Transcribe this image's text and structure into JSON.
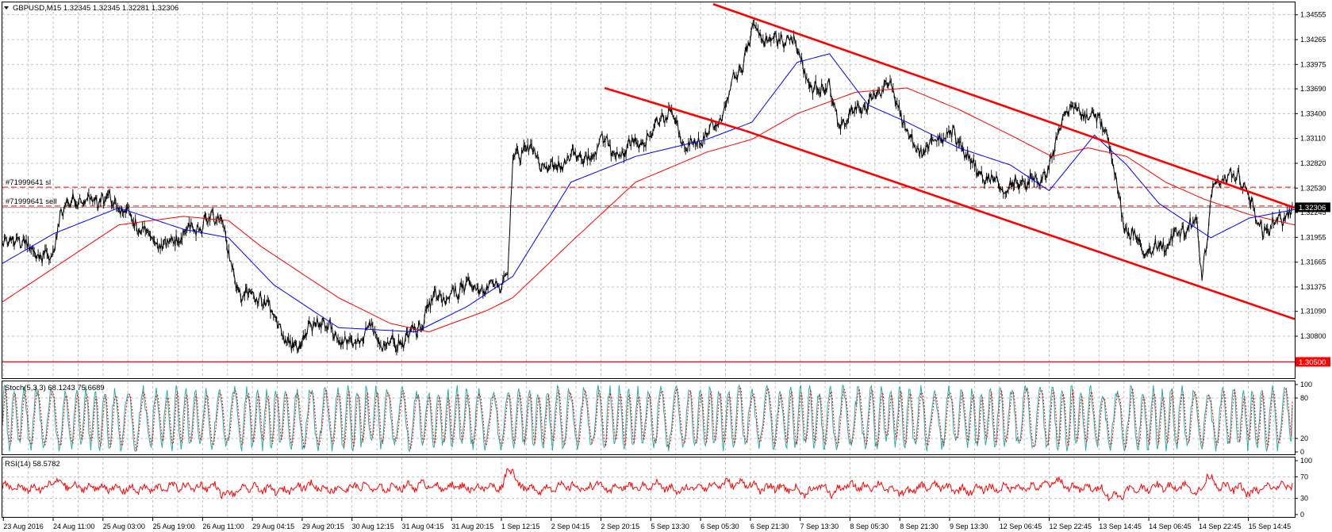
{
  "header": {
    "symbol_line": "GBPUSD,M15  1.32345 1.32345 1.32281 1.32306"
  },
  "colors": {
    "price": "#000000",
    "ma_fast": "#0000ff",
    "ma_slow": "#ff0000",
    "channel": "#ff0000",
    "stoch_main": "#20b2aa",
    "stoch_signal": "#ff0000",
    "rsi": "#ff0000",
    "grid": "#c0c0c0",
    "current_price_bg": "#000000",
    "level_price_bg": "#ff0000"
  },
  "chart_data": [
    {
      "type": "line",
      "name_label": "main",
      "ylim": [
        1.303,
        1.347
      ],
      "yticks": [
        "1.34555",
        "1.34265",
        "1.33975",
        "1.33690",
        "1.33400",
        "1.33110",
        "1.32820",
        "1.32530",
        "1.32245",
        "1.31955",
        "1.31665",
        "1.31375",
        "1.31090",
        "1.30800"
      ],
      "ytick_values": [
        1.34555,
        1.34265,
        1.33975,
        1.3369,
        1.334,
        1.3311,
        1.3282,
        1.3253,
        1.32245,
        1.31955,
        1.31665,
        1.31375,
        1.3109,
        1.308
      ],
      "current_price": "1.32306",
      "current_price_value": 1.32306,
      "level_price": "1.30500",
      "level_price_value": 1.305,
      "xticks": [
        "23 Aug 2016",
        "24 Aug 11:00",
        "25 Aug 03:00",
        "25 Aug 19:00",
        "26 Aug 11:00",
        "29 Aug 04:15",
        "29 Aug 20:15",
        "30 Aug 12:15",
        "31 Aug 04:15",
        "31 Aug 20:15",
        "1 Sep 12:15",
        "2 Sep 04:15",
        "2 Sep 20:15",
        "5 Sep 13:30",
        "6 Sep 05:30",
        "6 Sep 21:30",
        "7 Sep 13:30",
        "8 Sep 05:30",
        "8 Sep 21:30",
        "9 Sep 13:30",
        "12 Sep 06:45",
        "12 Sep 22:45",
        "13 Sep 14:45",
        "14 Sep 06:45",
        "14 Sep 22:45",
        "15 Sep 14:45"
      ],
      "orders": [
        {
          "label": "#71999641 sl",
          "value": 1.3254
        },
        {
          "label": "#71999641 sell",
          "value": 1.3232
        }
      ],
      "x_range": [
        0,
        1000
      ],
      "price_anchors": [
        [
          0,
          1.3185
        ],
        [
          10,
          1.3195
        ],
        [
          25,
          1.3178
        ],
        [
          38,
          1.3168
        ],
        [
          45,
          1.3225
        ],
        [
          55,
          1.324
        ],
        [
          70,
          1.3238
        ],
        [
          82,
          1.3243
        ],
        [
          95,
          1.3225
        ],
        [
          103,
          1.3212
        ],
        [
          115,
          1.3195
        ],
        [
          125,
          1.3185
        ],
        [
          140,
          1.32
        ],
        [
          155,
          1.321
        ],
        [
          170,
          1.3225
        ],
        [
          174,
          1.318
        ],
        [
          185,
          1.313
        ],
        [
          200,
          1.3125
        ],
        [
          215,
          1.3095
        ],
        [
          222,
          1.3065
        ],
        [
          235,
          1.3078
        ],
        [
          245,
          1.31
        ],
        [
          260,
          1.308
        ],
        [
          272,
          1.3068
        ],
        [
          285,
          1.309
        ],
        [
          298,
          1.3068
        ],
        [
          312,
          1.3075
        ],
        [
          325,
          1.3095
        ],
        [
          336,
          1.313
        ],
        [
          345,
          1.312
        ],
        [
          355,
          1.314
        ],
        [
          370,
          1.3135
        ],
        [
          385,
          1.314
        ],
        [
          392,
          1.315
        ],
        [
          396,
          1.329
        ],
        [
          405,
          1.33
        ],
        [
          412,
          1.3295
        ],
        [
          422,
          1.3275
        ],
        [
          435,
          1.3282
        ],
        [
          448,
          1.3295
        ],
        [
          457,
          1.328
        ],
        [
          465,
          1.332
        ],
        [
          473,
          1.329
        ],
        [
          490,
          1.3305
        ],
        [
          502,
          1.331
        ],
        [
          510,
          1.334
        ],
        [
          520,
          1.3335
        ],
        [
          530,
          1.33
        ],
        [
          540,
          1.3308
        ],
        [
          555,
          1.333
        ],
        [
          565,
          1.337
        ],
        [
          575,
          1.3405
        ],
        [
          583,
          1.344
        ],
        [
          593,
          1.3425
        ],
        [
          605,
          1.343
        ],
        [
          618,
          1.3415
        ],
        [
          627,
          1.3365
        ],
        [
          640,
          1.3375
        ],
        [
          648,
          1.3325
        ],
        [
          662,
          1.3345
        ],
        [
          675,
          1.3355
        ],
        [
          686,
          1.338
        ],
        [
          697,
          1.334
        ],
        [
          708,
          1.3295
        ],
        [
          720,
          1.3305
        ],
        [
          733,
          1.332
        ],
        [
          745,
          1.33
        ],
        [
          755,
          1.327
        ],
        [
          765,
          1.3265
        ],
        [
          778,
          1.3252
        ],
        [
          790,
          1.3262
        ],
        [
          802,
          1.3258
        ],
        [
          814,
          1.3285
        ],
        [
          822,
          1.334
        ],
        [
          833,
          1.3345
        ],
        [
          845,
          1.3335
        ],
        [
          855,
          1.333
        ],
        [
          862,
          1.327
        ],
        [
          870,
          1.3208
        ],
        [
          880,
          1.319
        ],
        [
          890,
          1.3178
        ],
        [
          902,
          1.319
        ],
        [
          912,
          1.32
        ],
        [
          920,
          1.321
        ],
        [
          926,
          1.321
        ],
        [
          930,
          1.315
        ],
        [
          938,
          1.325
        ],
        [
          948,
          1.327
        ],
        [
          956,
          1.3265
        ],
        [
          964,
          1.326
        ],
        [
          972,
          1.321
        ],
        [
          982,
          1.3205
        ],
        [
          992,
          1.3215
        ],
        [
          1000,
          1.3232
        ]
      ],
      "ma_fast_anchors": [
        [
          0,
          1.3165
        ],
        [
          40,
          1.32
        ],
        [
          90,
          1.323
        ],
        [
          140,
          1.3205
        ],
        [
          175,
          1.3195
        ],
        [
          210,
          1.314
        ],
        [
          260,
          1.309
        ],
        [
          320,
          1.3085
        ],
        [
          360,
          1.3115
        ],
        [
          395,
          1.315
        ],
        [
          440,
          1.326
        ],
        [
          490,
          1.329
        ],
        [
          545,
          1.331
        ],
        [
          580,
          1.333
        ],
        [
          615,
          1.34
        ],
        [
          640,
          1.341
        ],
        [
          670,
          1.335
        ],
        [
          700,
          1.333
        ],
        [
          740,
          1.33
        ],
        [
          780,
          1.328
        ],
        [
          810,
          1.325
        ],
        [
          845,
          1.3315
        ],
        [
          870,
          1.328
        ],
        [
          895,
          1.3235
        ],
        [
          935,
          1.3195
        ],
        [
          965,
          1.3218
        ],
        [
          1000,
          1.3228
        ]
      ],
      "ma_slow_anchors": [
        [
          0,
          1.312
        ],
        [
          40,
          1.316
        ],
        [
          90,
          1.321
        ],
        [
          140,
          1.322
        ],
        [
          175,
          1.3215
        ],
        [
          200,
          1.3185
        ],
        [
          260,
          1.3125
        ],
        [
          300,
          1.3095
        ],
        [
          330,
          1.3085
        ],
        [
          375,
          1.311
        ],
        [
          395,
          1.3125
        ],
        [
          440,
          1.319
        ],
        [
          490,
          1.326
        ],
        [
          545,
          1.3295
        ],
        [
          580,
          1.331
        ],
        [
          615,
          1.334
        ],
        [
          660,
          1.3365
        ],
        [
          700,
          1.337
        ],
        [
          740,
          1.3345
        ],
        [
          780,
          1.3315
        ],
        [
          812,
          1.329
        ],
        [
          840,
          1.33
        ],
        [
          870,
          1.329
        ],
        [
          900,
          1.326
        ],
        [
          930,
          1.324
        ],
        [
          965,
          1.3222
        ],
        [
          1000,
          1.321
        ]
      ],
      "channel_upper": [
        [
          550,
          1.3468
        ],
        [
          1000,
          1.323
        ]
      ],
      "channel_mid": [
        [
          466,
          1.337
        ],
        [
          575,
          1.332
        ]
      ],
      "channel_lower": [
        [
          575,
          1.332
        ],
        [
          1000,
          1.31
        ]
      ]
    },
    {
      "type": "line",
      "name_label": "stochastic",
      "label": "Stoch(5,3,3) 68.1243 75.6689",
      "ylim": [
        0,
        100
      ],
      "yticks": [
        "100",
        "80",
        "20",
        "0"
      ],
      "ytick_values": [
        100,
        80,
        20,
        0
      ],
      "levels": [
        80,
        20
      ],
      "main": 68.1243,
      "signal": 75.6689
    },
    {
      "type": "line",
      "name_label": "rsi",
      "label": "RSI(14) 58.5782",
      "ylim": [
        0,
        100
      ],
      "yticks": [
        "100",
        "70",
        "30",
        "0"
      ],
      "ytick_values": [
        100,
        70,
        30,
        0
      ],
      "levels": [
        70,
        30
      ],
      "value": 58.5782
    }
  ]
}
